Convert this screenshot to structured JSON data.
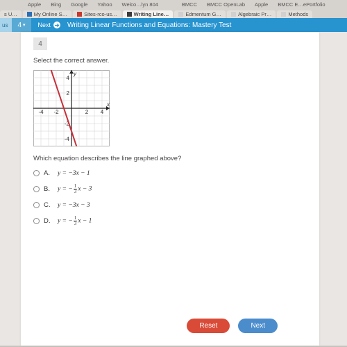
{
  "bookmarks": {
    "items": [
      "Apple",
      "Bing",
      "Google",
      "Yahoo",
      "Welco…lyn 804",
      "BMCC",
      "BMCC OpenLab",
      "Apple",
      "BMCC E…ePortfolio"
    ]
  },
  "tabs": {
    "items": [
      {
        "label": "s U…"
      },
      {
        "label": "My Online S…"
      },
      {
        "label": "Sites-rco-us…"
      },
      {
        "label": "Writing Line…"
      },
      {
        "label": "Edmentum G…"
      },
      {
        "label": "Algebraic Pr…"
      },
      {
        "label": "Methods"
      }
    ],
    "active_index": 3
  },
  "header": {
    "left_stub": "us",
    "question_num": "4",
    "next_label": "Next",
    "title": "Writing Linear Functions and Equations: Mastery Test"
  },
  "question": {
    "badge": "4",
    "prompt": "Select the correct answer.",
    "sub": "Which equation describes the line graphed above?",
    "choices": {
      "A": {
        "plain": "y = −3x − 1"
      },
      "B": {
        "frac": {
          "num": "1",
          "den": "3"
        },
        "tail": "x − 3"
      },
      "C": {
        "plain": "y = −3x − 3"
      },
      "D": {
        "frac": {
          "num": "1",
          "den": "3"
        },
        "tail": "x − 1"
      }
    }
  },
  "graph": {
    "x_min": -5,
    "x_max": 5,
    "y_min": -5,
    "y_max": 5,
    "axis_labels": {
      "x": "x",
      "y": "y",
      "ticks": [
        -4,
        -2,
        2,
        4
      ]
    },
    "line": {
      "slope": -3,
      "intercept": -3,
      "color": "#c72f3a",
      "width": 2
    },
    "grid_color": "#cfcfcf",
    "axis_color": "#222",
    "bg": "#ffffff",
    "label_fontsize": 8
  },
  "buttons": {
    "reset": "Reset",
    "next": "Next"
  },
  "colors": {
    "header_bg": "#2793cf",
    "reset": "#d94a37",
    "next": "#4a8ccc",
    "paper": "#ffffff",
    "viewport": "#e9e6e3"
  }
}
